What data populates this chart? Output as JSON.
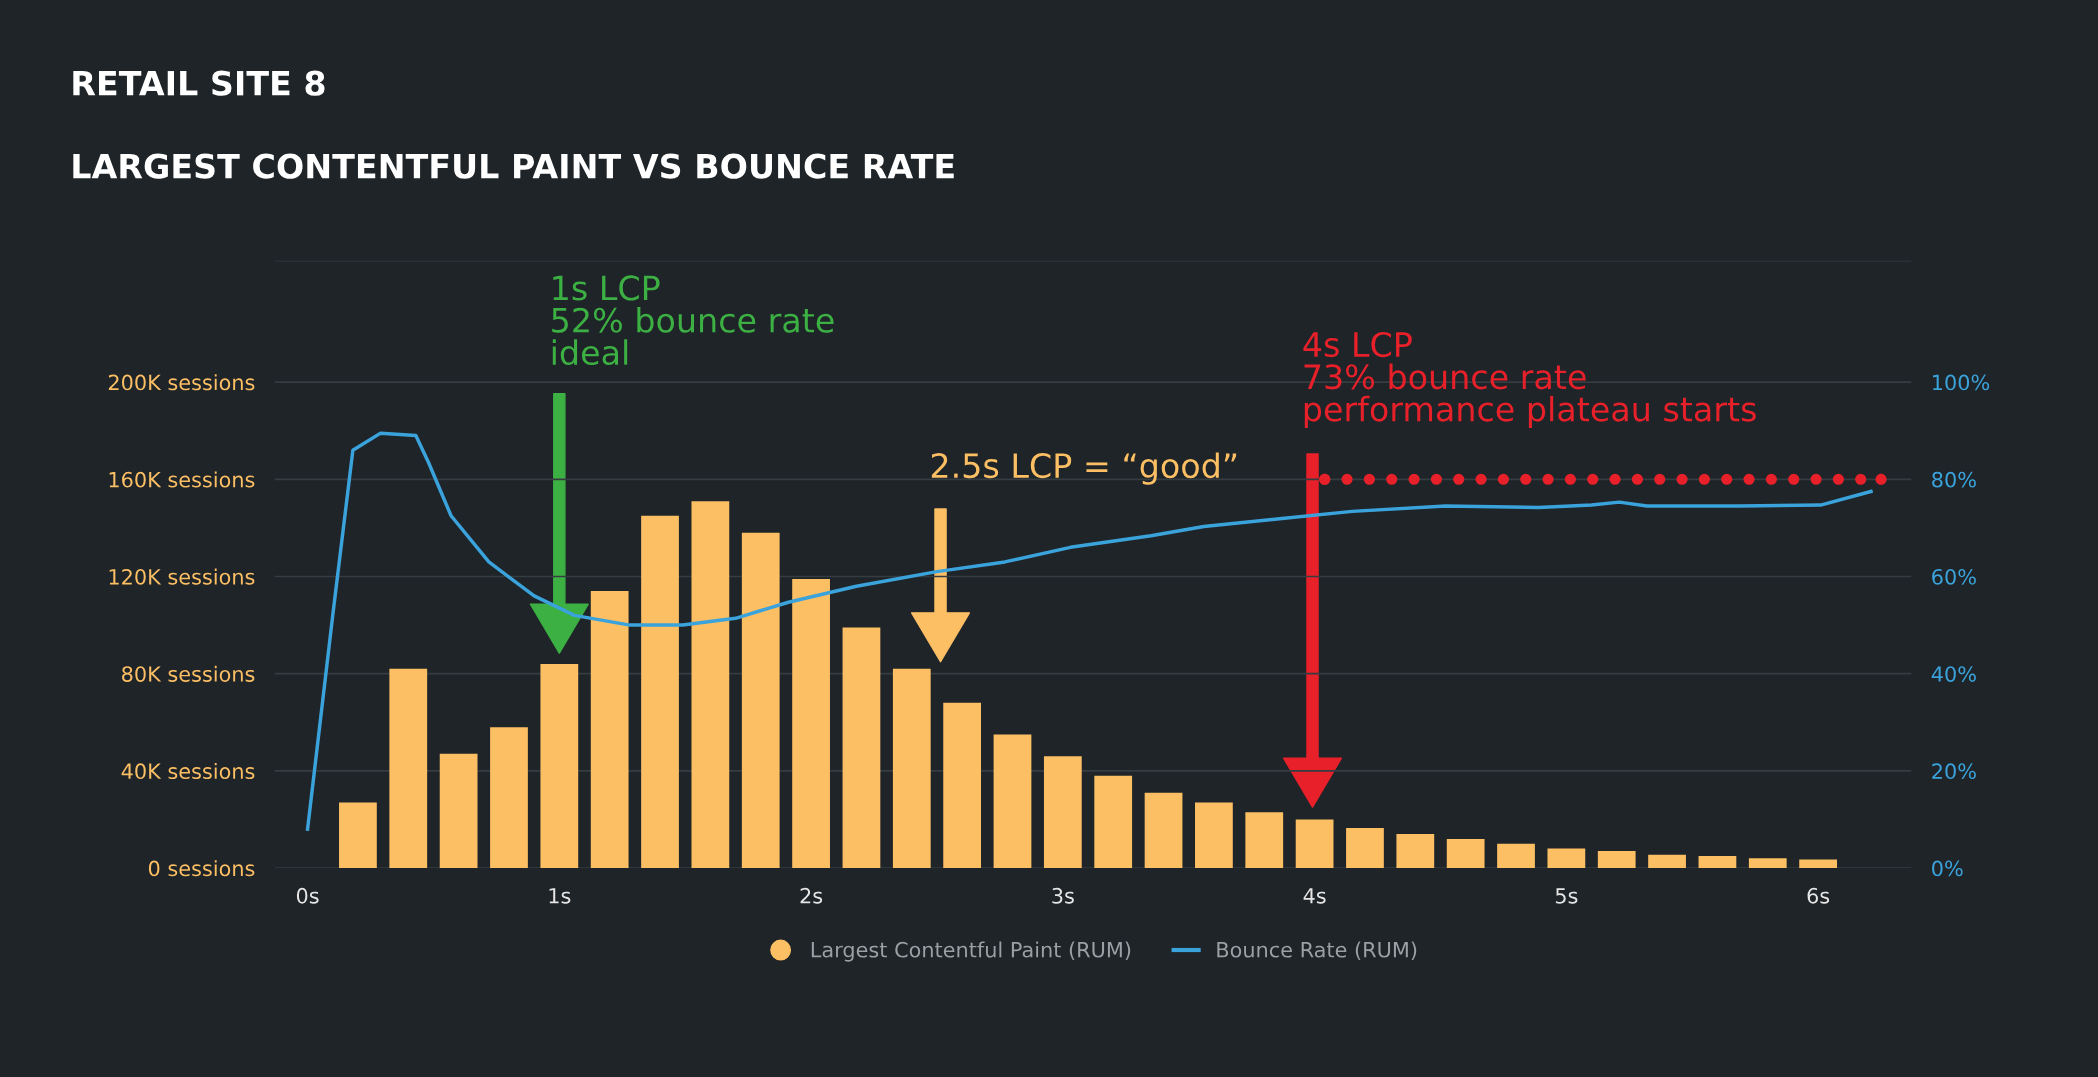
{
  "chart_data": {
    "type": "bar",
    "title": "RETAIL SITE 8",
    "subtitle": "LARGEST CONTENTFUL PAINT VS BOUNCE RATE",
    "xlim": [
      -0.13,
      6.37
    ],
    "xticks": [
      {
        "value": 0,
        "label": "0s"
      },
      {
        "value": 1,
        "label": "1s"
      },
      {
        "value": 2,
        "label": "2s"
      },
      {
        "value": 3,
        "label": "3s"
      },
      {
        "value": 4,
        "label": "4s"
      },
      {
        "value": 5,
        "label": "5s"
      },
      {
        "value": 6,
        "label": "6s"
      }
    ],
    "ylim": [
      0,
      250000
    ],
    "yticks": [
      {
        "value": 0,
        "label": "0 sessions"
      },
      {
        "value": 40000,
        "label": "40K sessions"
      },
      {
        "value": 80000,
        "label": "80K sessions"
      },
      {
        "value": 120000,
        "label": "120K sessions"
      },
      {
        "value": 160000,
        "label": "160K sessions"
      },
      {
        "value": 200000,
        "label": "200K sessions"
      },
      {
        "value": 250000,
        "label": null
      }
    ],
    "y2lim": [
      0,
      125
    ],
    "y2ticks": [
      {
        "value": 0,
        "label": "0%"
      },
      {
        "value": 20,
        "label": "20%"
      },
      {
        "value": 40,
        "label": "40%"
      },
      {
        "value": 60,
        "label": "60%"
      },
      {
        "value": 80,
        "label": "80%"
      },
      {
        "value": 100,
        "label": "100%"
      }
    ],
    "grid": "y",
    "legend": "bottom",
    "series": [
      {
        "name": "Largest Contentful Paint (RUM)",
        "color": "#fdbf64",
        "marker": "circle",
        "x": [
          0.2,
          0.4,
          0.6,
          0.8,
          1.0,
          1.2,
          1.4,
          1.6,
          1.8,
          2.0,
          2.2,
          2.4,
          2.6,
          2.8,
          3.0,
          3.2,
          3.4,
          3.6,
          3.8,
          4.0,
          4.2,
          4.4,
          4.6,
          4.8,
          5.0,
          5.2,
          5.4,
          5.6,
          5.8,
          6.0
        ],
        "values": [
          27000,
          82000,
          47000,
          58000,
          84000,
          114000,
          145000,
          151000,
          138000,
          119000,
          99000,
          82000,
          68000,
          55000,
          46000,
          38000,
          31000,
          27000,
          23000,
          20000,
          16500,
          14000,
          12000,
          10000,
          8000,
          7000,
          5500,
          5000,
          4000,
          3500
        ]
      },
      {
        "type": "line",
        "axis": "y2",
        "name": "Bounce Rate (RUM)",
        "color": "#3ba3dc",
        "x": [
          0.0,
          0.1,
          0.18,
          0.29,
          0.43,
          0.48,
          0.57,
          0.72,
          0.9,
          1.06,
          1.28,
          1.49,
          1.7,
          1.91,
          2.18,
          2.5,
          2.77,
          3.03,
          3.35,
          3.56,
          3.88,
          4.15,
          4.52,
          4.89,
          5.1,
          5.21,
          5.32,
          5.69,
          6.01,
          6.21
        ],
        "values": [
          8,
          52,
          86,
          89.5,
          89,
          83.5,
          72.5,
          63,
          56,
          52,
          50,
          50,
          51.4,
          54.7,
          58,
          61,
          63,
          66,
          68.4,
          70.3,
          72,
          73.4,
          74.5,
          74.2,
          74.7,
          75.3,
          74.5,
          74.5,
          74.7,
          77.5
        ]
      },
      {
        "type": "line",
        "axis": "y2",
        "color": "#e8202a",
        "line_style": "dotted",
        "marker": "circle",
        "x": [
          4.04,
          6.25
        ],
        "values": [
          80,
          80
        ]
      }
    ],
    "annotations": [
      "1s LCP\n52% bounce rate\nideal",
      "2.5s LCP = “good”",
      "4s LCP\n73% bounce rate\nperformance plateau starts"
    ]
  }
}
